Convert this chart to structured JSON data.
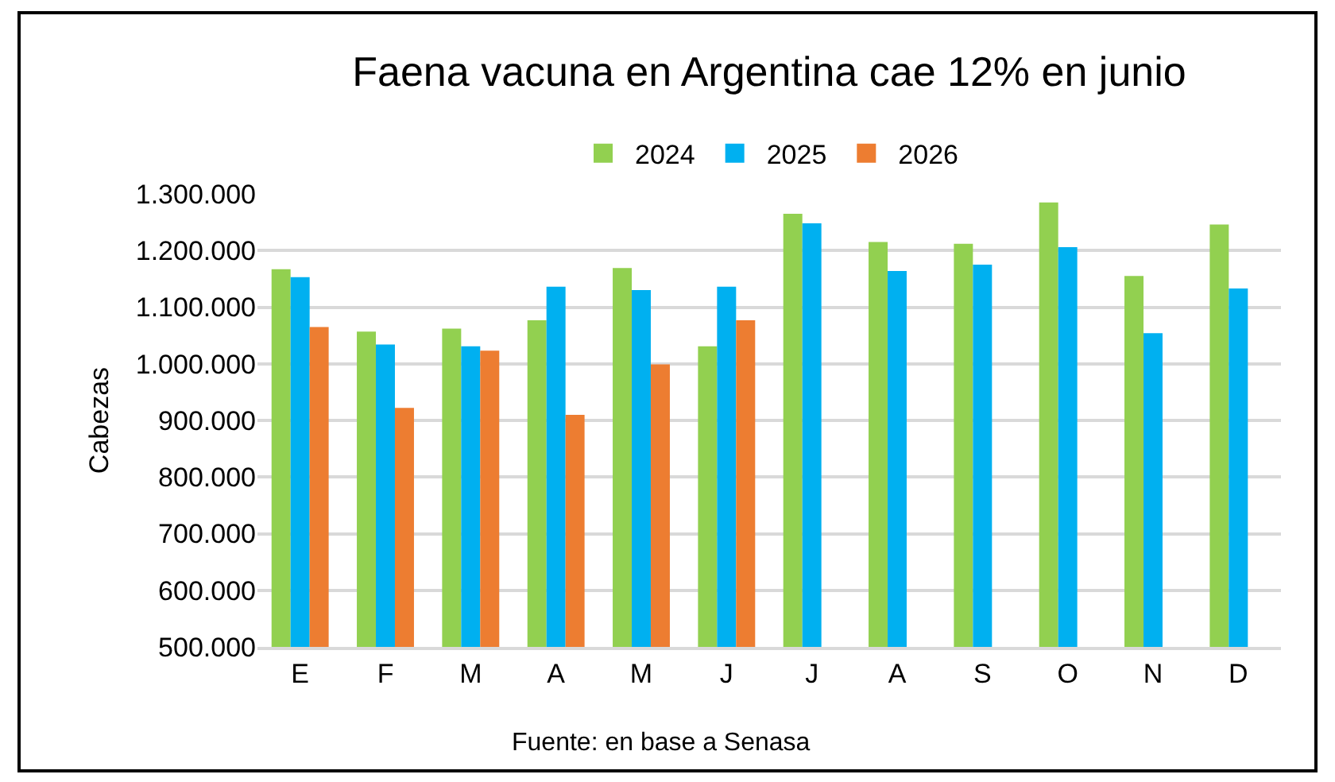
{
  "chart_data": {
    "type": "bar",
    "title": "Faena vacuna en Argentina cae 12% en junio",
    "ylabel": "Cabezas",
    "categories": [
      "E",
      "F",
      "M",
      "A",
      "M",
      "J",
      "J",
      "A",
      "S",
      "O",
      "N",
      "D"
    ],
    "series": [
      {
        "name": "2024",
        "color": "#92d050",
        "values": [
          1167000,
          1057000,
          1062000,
          1077000,
          1169000,
          1031000,
          1265000,
          1215000,
          1212000,
          1285000,
          1155000,
          1246000
        ]
      },
      {
        "name": "2025",
        "color": "#00b0f0",
        "values": [
          1153000,
          1034000,
          1031000,
          1136000,
          1130000,
          1136000,
          1248000,
          1164000,
          1175000,
          1206000,
          1054000,
          1133000
        ]
      },
      {
        "name": "2026",
        "color": "#ed7d31",
        "values": [
          1065000,
          922000,
          1023000,
          910000,
          999000,
          1077000,
          null,
          null,
          null,
          null,
          null,
          null
        ]
      }
    ],
    "ylim": [
      500000,
      1300000
    ],
    "yticks": [
      {
        "value": 500000,
        "label": "500.000"
      },
      {
        "value": 600000,
        "label": "600.000"
      },
      {
        "value": 700000,
        "label": "700.000"
      },
      {
        "value": 800000,
        "label": "800.000"
      },
      {
        "value": 900000,
        "label": "900.000"
      },
      {
        "value": 1000000,
        "label": "1.000.000"
      },
      {
        "value": 1100000,
        "label": "1.100.000"
      },
      {
        "value": 1200000,
        "label": "1.200.000"
      },
      {
        "value": 1300000,
        "label": "1.300.000"
      }
    ],
    "grid": "y",
    "legend": "top",
    "annotations": [
      "Fuente: en base a Senasa"
    ]
  }
}
